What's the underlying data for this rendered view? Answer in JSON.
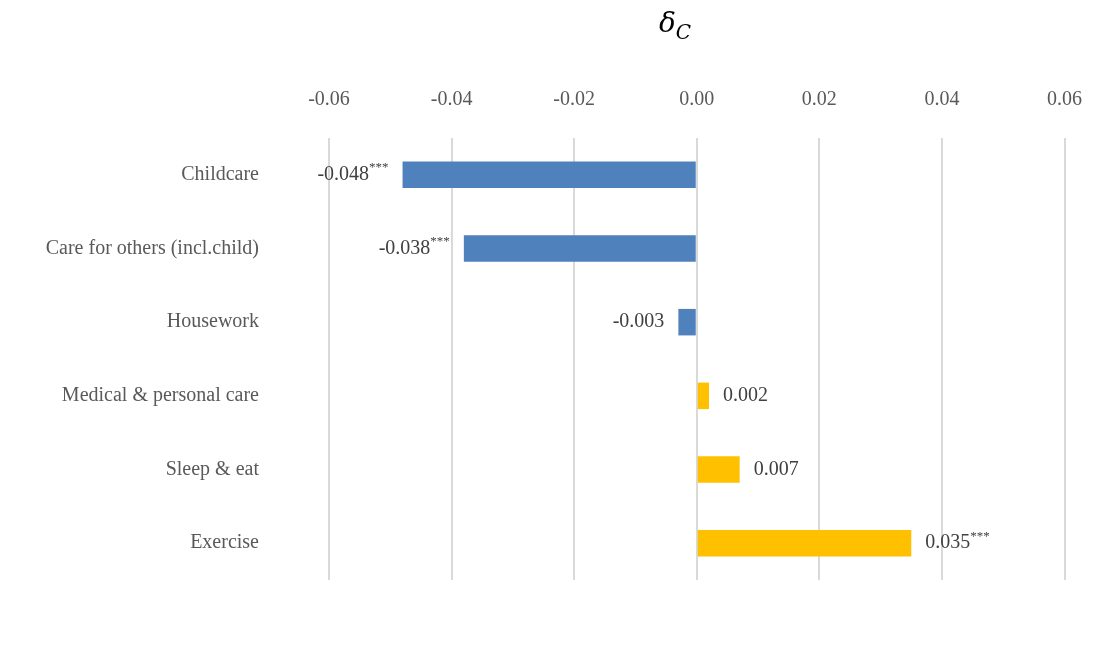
{
  "chart_data": {
    "type": "bar",
    "orientation": "horizontal",
    "title": "δ$_{C}$",
    "categories": [
      "Childcare",
      "Care for others (incl.child)",
      "Housework",
      "Medical & personal care",
      "Sleep & eat",
      "Exercise"
    ],
    "values": [
      -0.048,
      -0.038,
      -0.003,
      0.002,
      0.007,
      0.035
    ],
    "colors": [
      "#4f81bd",
      "#4f81bd",
      "#4f81bd",
      "#ffc000",
      "#ffc000",
      "#ffc000"
    ],
    "value_labels": [
      "-0.048$^{***}$",
      "-0.038$^{***}$",
      "-0.003",
      "0.002",
      "0.007",
      "0.035$^{***}$"
    ],
    "xlim": [
      -0.06,
      0.06
    ],
    "xticks": [
      {
        "value": -0.06,
        "label": "-0.06"
      },
      {
        "value": -0.04,
        "label": "-0.04"
      },
      {
        "value": -0.02,
        "label": "-0.02"
      },
      {
        "value": 0,
        "label": "0.00"
      },
      {
        "value": 0.02,
        "label": "0.02"
      },
      {
        "value": 0.04,
        "label": "0.04"
      },
      {
        "value": 0.06,
        "label": "0.06"
      }
    ],
    "grid": "x",
    "legend": false
  }
}
